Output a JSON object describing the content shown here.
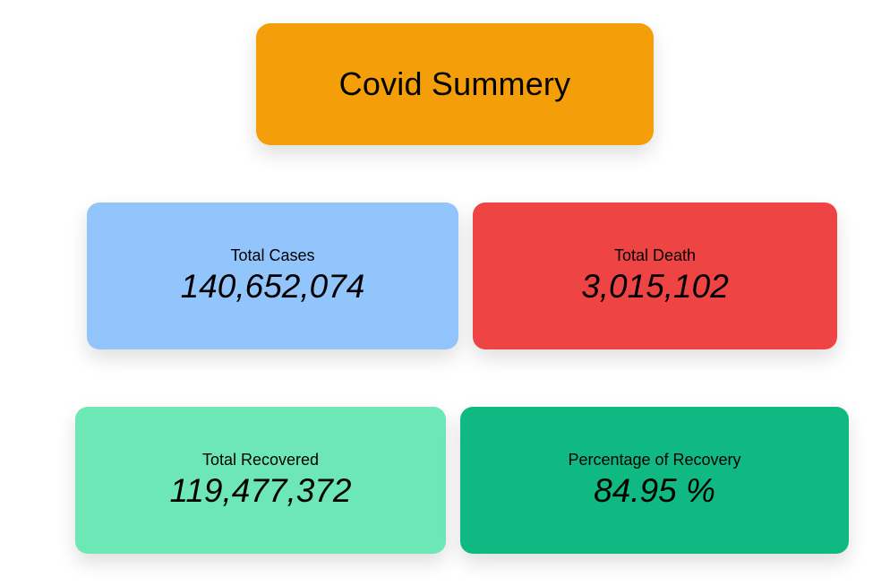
{
  "summary": {
    "title": "Covid Summery",
    "color": "#f49f0a"
  },
  "stats": [
    {
      "label": "Total Cases",
      "value": "140,652,074",
      "color": "#93c5fd"
    },
    {
      "label": "Total Death",
      "value": "3,015,102",
      "color": "#ef4444"
    },
    {
      "label": "Total Recovered",
      "value": "119,477,372",
      "color": "#6ee7b7"
    },
    {
      "label": "Percentage of Recovery",
      "value": "84.95 %",
      "color": "#10b981"
    }
  ]
}
